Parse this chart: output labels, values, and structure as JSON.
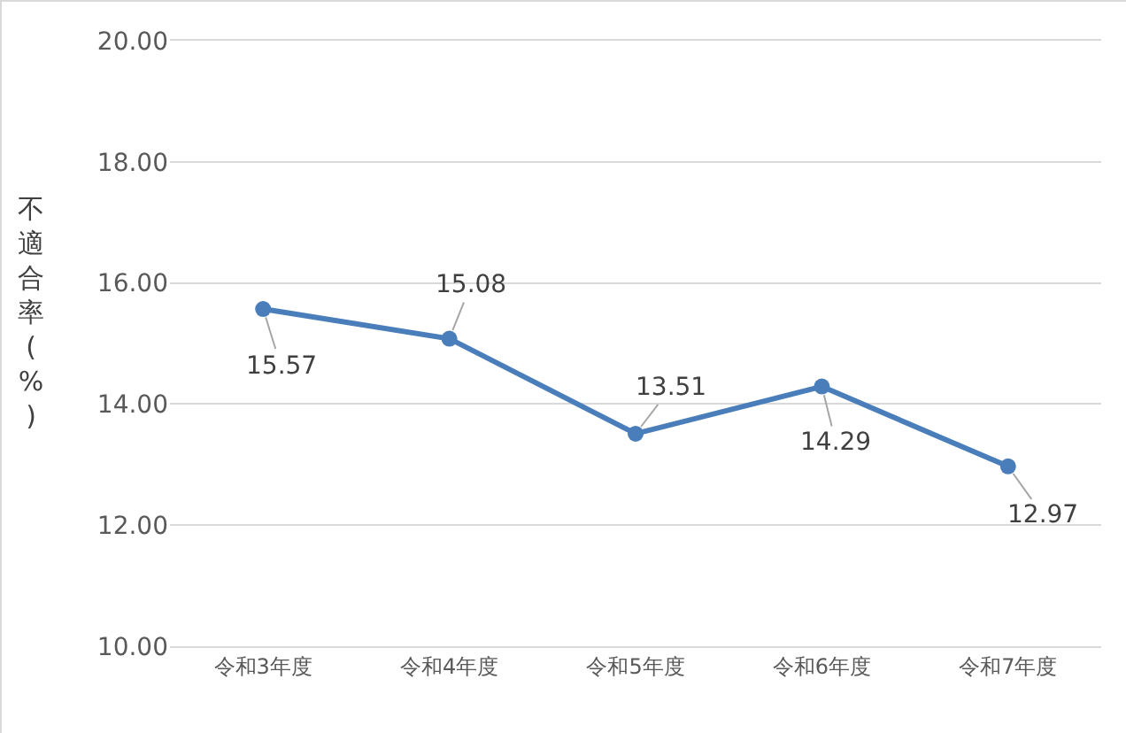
{
  "chart_data": {
    "type": "line",
    "ylabel": "不適合率(%)",
    "categories": [
      "令和3年度",
      "令和4年度",
      "令和5年度",
      "令和6年度",
      "令和7年度"
    ],
    "series": [
      {
        "color": "#4a7ebb",
        "values": [
          15.57,
          15.08,
          13.51,
          14.29,
          12.97
        ]
      }
    ],
    "ylim": [
      10,
      20
    ],
    "yticks": [
      {
        "value": 10,
        "label": "10.00"
      },
      {
        "value": 12,
        "label": "12.00"
      },
      {
        "value": 14,
        "label": "14.00"
      },
      {
        "value": 16,
        "label": "16.00"
      },
      {
        "value": 18,
        "label": "18.00"
      },
      {
        "value": 20,
        "label": "20.00"
      }
    ],
    "grid": "y",
    "marker": "circle",
    "line_style": "solid",
    "data_labels": true
  }
}
